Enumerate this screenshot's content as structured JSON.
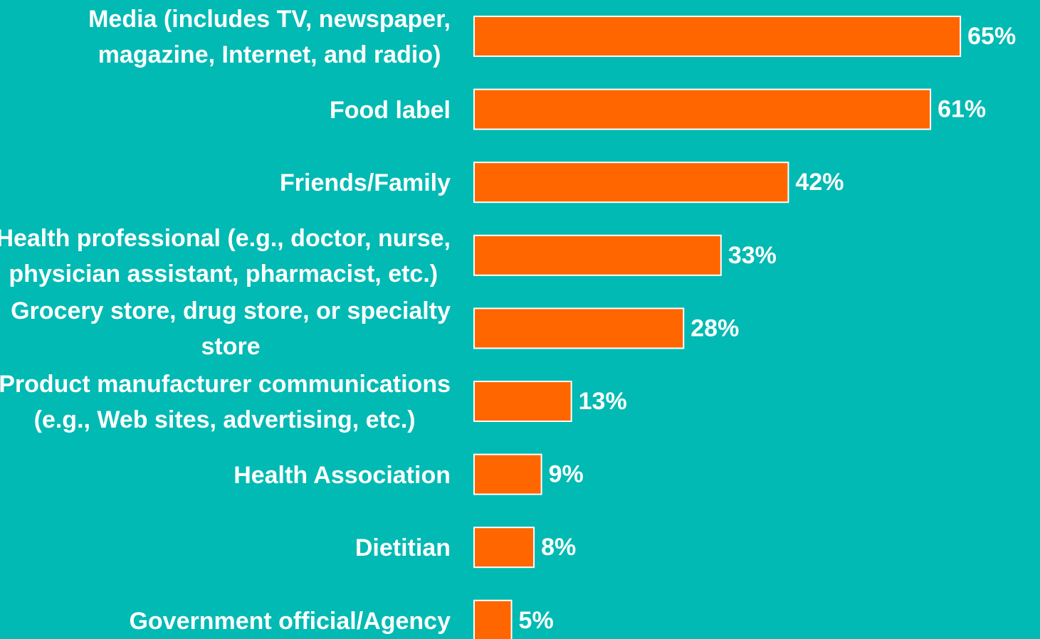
{
  "chart_data": {
    "type": "bar",
    "orientation": "horizontal",
    "categories": [
      [
        "Media (includes TV, newspaper,",
        "magazine, Internet, and radio)"
      ],
      [
        "Food label"
      ],
      [
        "Friends/Family"
      ],
      [
        "Health professional (e.g., doctor, nurse,",
        "physician assistant, pharmacist, etc.)"
      ],
      [
        "Grocery store, drug store, or specialty",
        "store"
      ],
      [
        "Product manufacturer communications",
        "(e.g., Web sites, advertising, etc.)"
      ],
      [
        "Health Association"
      ],
      [
        "Dietitian"
      ],
      [
        "Government official/Agency"
      ]
    ],
    "values": [
      65,
      61,
      42,
      33,
      28,
      13,
      9,
      8,
      5
    ],
    "value_labels": [
      "65%",
      "61%",
      "42%",
      "33%",
      "28%",
      "13%",
      "9%",
      "8%",
      "5%"
    ],
    "color": "#ff6600",
    "background": "#00bab3"
  }
}
